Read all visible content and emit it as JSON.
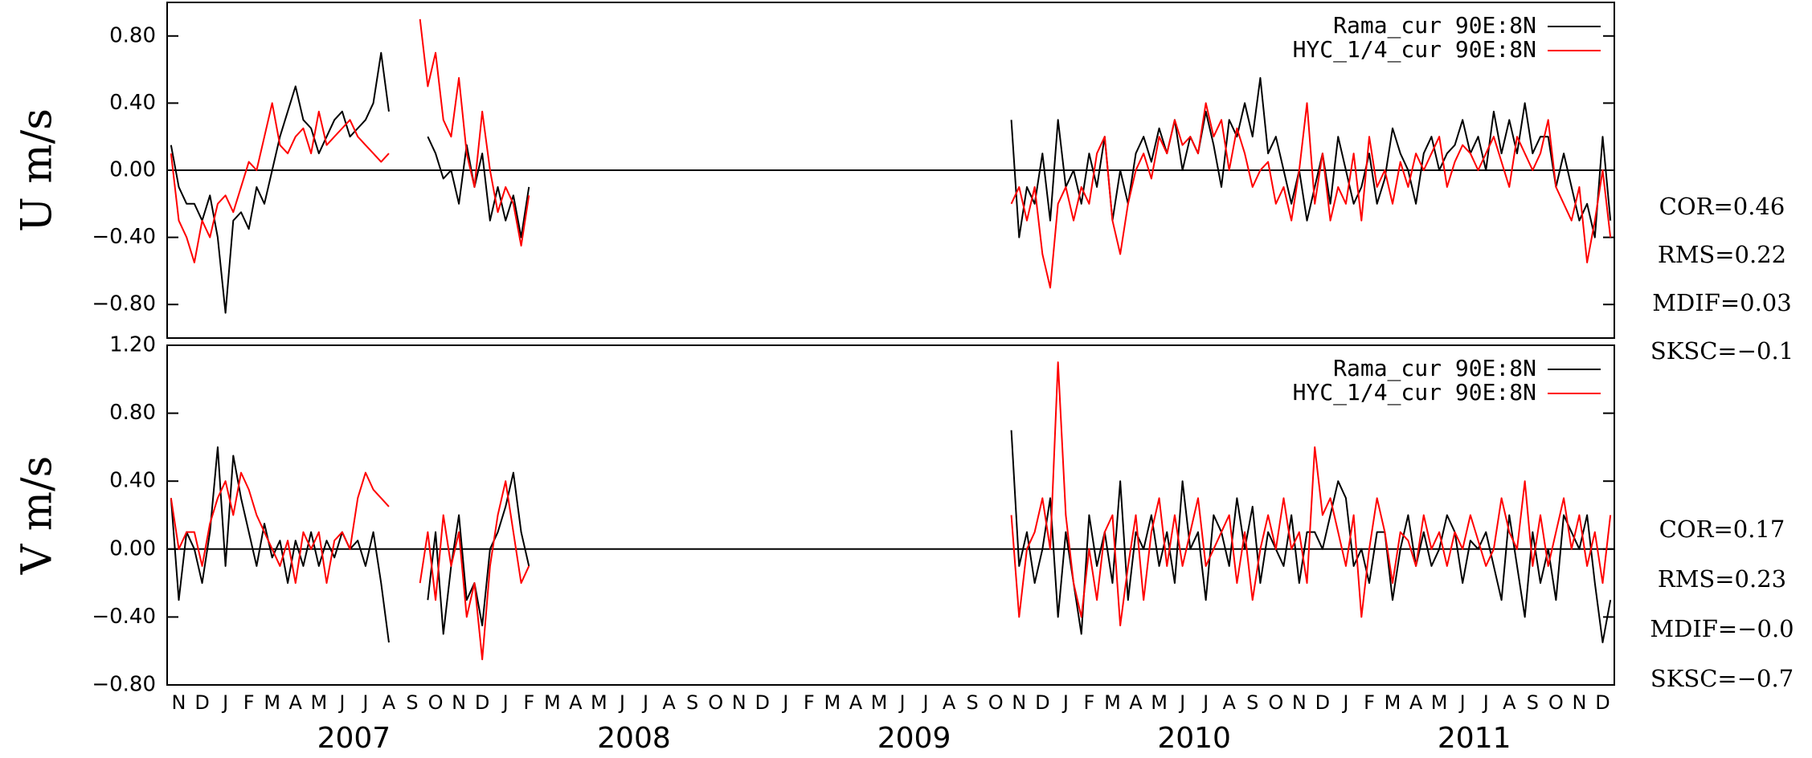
{
  "chart_data": [
    {
      "type": "line",
      "ylabel": "U m/s",
      "ylim": [
        -1.0,
        1.0
      ],
      "yticks": [
        {
          "value": -0.8,
          "label": "−0.80"
        },
        {
          "value": -0.4,
          "label": "−0.40"
        },
        {
          "value": 0,
          "label": "0.00"
        },
        {
          "value": 0.4,
          "label": "0.40"
        },
        {
          "value": 0.8,
          "label": "0.80"
        }
      ],
      "series": [
        {
          "name": "Rama_cur 90E:8N",
          "color": "#000000",
          "values": [
            0.15,
            -0.1,
            -0.2,
            -0.2,
            -0.3,
            -0.15,
            -0.4,
            -0.85,
            -0.3,
            -0.25,
            -0.35,
            -0.1,
            -0.2,
            0.0,
            0.2,
            0.35,
            0.5,
            0.3,
            0.25,
            0.1,
            0.2,
            0.3,
            0.35,
            0.2,
            0.25,
            0.3,
            0.4,
            0.7,
            0.35,
            null,
            null,
            null,
            null,
            0.2,
            0.1,
            -0.05,
            0.0,
            -0.2,
            0.15,
            -0.1,
            0.1,
            -0.3,
            -0.1,
            -0.3,
            -0.15,
            -0.4,
            -0.1,
            null,
            null,
            null,
            null,
            null,
            null,
            null,
            null,
            null,
            null,
            null,
            null,
            null,
            null,
            null,
            null,
            null,
            null,
            null,
            null,
            null,
            null,
            null,
            null,
            null,
            null,
            null,
            null,
            null,
            null,
            null,
            null,
            null,
            null,
            null,
            null,
            null,
            null,
            null,
            null,
            null,
            null,
            null,
            null,
            null,
            null,
            null,
            null,
            null,
            null,
            null,
            null,
            null,
            null,
            null,
            null,
            null,
            null,
            null,
            null,
            null,
            0.3,
            -0.4,
            -0.1,
            -0.2,
            0.1,
            -0.3,
            0.3,
            -0.1,
            0.0,
            -0.2,
            0.1,
            -0.1,
            0.2,
            -0.3,
            0.0,
            -0.2,
            0.1,
            0.2,
            0.05,
            0.25,
            0.1,
            0.3,
            0.0,
            0.2,
            0.1,
            0.35,
            0.15,
            -0.1,
            0.3,
            0.2,
            0.4,
            0.2,
            0.55,
            0.1,
            0.2,
            0.0,
            -0.2,
            0.0,
            -0.3,
            -0.1,
            0.1,
            -0.2,
            0.2,
            0.0,
            -0.2,
            -0.1,
            0.1,
            -0.2,
            -0.05,
            0.25,
            0.1,
            0.0,
            -0.2,
            0.1,
            0.2,
            0.0,
            0.1,
            0.15,
            0.3,
            0.1,
            0.2,
            0.0,
            0.35,
            0.1,
            0.3,
            0.1,
            0.4,
            0.1,
            0.2,
            0.2,
            -0.1,
            0.1,
            -0.1,
            -0.3,
            -0.2,
            -0.4,
            0.2,
            -0.3
          ]
        },
        {
          "name": "HYC_1/4_cur 90E:8N",
          "color": "#ff0000",
          "values": [
            0.1,
            -0.3,
            -0.4,
            -0.55,
            -0.3,
            -0.4,
            -0.2,
            -0.15,
            -0.25,
            -0.1,
            0.05,
            0.0,
            0.2,
            0.4,
            0.15,
            0.1,
            0.2,
            0.25,
            0.1,
            0.35,
            0.15,
            0.2,
            0.25,
            0.3,
            0.2,
            0.15,
            0.1,
            0.05,
            0.1,
            null,
            null,
            null,
            0.9,
            0.5,
            0.7,
            0.3,
            0.2,
            0.55,
            0.1,
            -0.1,
            0.35,
            0.0,
            -0.25,
            -0.1,
            -0.2,
            -0.45,
            -0.15,
            null,
            null,
            null,
            null,
            null,
            null,
            null,
            null,
            null,
            null,
            null,
            null,
            null,
            null,
            null,
            null,
            null,
            null,
            null,
            null,
            null,
            null,
            null,
            null,
            null,
            null,
            null,
            null,
            null,
            null,
            null,
            null,
            null,
            null,
            null,
            null,
            null,
            null,
            null,
            null,
            null,
            null,
            null,
            null,
            null,
            null,
            null,
            null,
            null,
            null,
            null,
            null,
            null,
            null,
            null,
            null,
            null,
            null,
            null,
            null,
            null,
            -0.2,
            -0.1,
            -0.3,
            -0.1,
            -0.5,
            -0.7,
            -0.2,
            -0.1,
            -0.3,
            -0.1,
            -0.2,
            0.1,
            0.2,
            -0.3,
            -0.5,
            -0.2,
            0.0,
            0.1,
            -0.05,
            0.2,
            0.1,
            0.3,
            0.15,
            0.2,
            0.1,
            0.4,
            0.2,
            0.3,
            0.0,
            0.25,
            0.1,
            -0.1,
            0.0,
            0.05,
            -0.2,
            -0.1,
            -0.3,
            0.0,
            0.4,
            -0.2,
            0.1,
            -0.3,
            -0.1,
            -0.2,
            0.1,
            -0.3,
            0.2,
            -0.1,
            0.0,
            -0.2,
            0.05,
            -0.1,
            0.1,
            0.0,
            0.1,
            0.2,
            -0.1,
            0.05,
            0.15,
            0.1,
            0.0,
            0.1,
            0.2,
            0.05,
            -0.1,
            0.2,
            0.1,
            0.0,
            0.1,
            0.3,
            -0.1,
            -0.2,
            -0.3,
            -0.1,
            -0.55,
            -0.3,
            0.0,
            -0.4
          ]
        }
      ],
      "annotations": [
        "COR=0.46",
        "RMS=0.22",
        "MDIF=0.03",
        "SKSC=−0.1"
      ]
    },
    {
      "type": "line",
      "ylabel": "V m/s",
      "ylim": [
        -0.8,
        1.2
      ],
      "yticks": [
        {
          "value": -0.8,
          "label": "−0.80"
        },
        {
          "value": -0.4,
          "label": "−0.40"
        },
        {
          "value": 0,
          "label": "0.00"
        },
        {
          "value": 0.4,
          "label": "0.40"
        },
        {
          "value": 0.8,
          "label": "0.80"
        },
        {
          "value": 1.2,
          "label": "1.20"
        }
      ],
      "categories": [
        null,
        "N",
        null,
        null,
        "D",
        null,
        null,
        "J",
        null,
        null,
        "F",
        null,
        null,
        "M",
        null,
        null,
        "A",
        null,
        null,
        "M",
        null,
        null,
        "J",
        null,
        null,
        "J",
        null,
        null,
        "A",
        null,
        null,
        "S",
        null,
        null,
        "O",
        null,
        null,
        "N",
        null,
        null,
        "D",
        null,
        null,
        "J",
        null,
        null,
        "F",
        null,
        null,
        "M",
        null,
        null,
        "A",
        null,
        null,
        "M",
        null,
        null,
        "J",
        null,
        null,
        "J",
        null,
        null,
        "A",
        null,
        null,
        "S",
        null,
        null,
        "O",
        null,
        null,
        "N",
        null,
        null,
        "D",
        null,
        null,
        "J",
        null,
        null,
        "F",
        null,
        null,
        "M",
        null,
        null,
        "A",
        null,
        null,
        "M",
        null,
        null,
        "J",
        null,
        null,
        "J",
        null,
        null,
        "A",
        null,
        null,
        "S",
        null,
        null,
        "O",
        null,
        null,
        "N",
        null,
        null,
        "D",
        null,
        null,
        "J",
        null,
        null,
        "F",
        null,
        null,
        "M",
        null,
        null,
        "A",
        null,
        null,
        "M",
        null,
        null,
        "J",
        null,
        null,
        "J",
        null,
        null,
        "A",
        null,
        null,
        "S",
        null,
        null,
        "O",
        null,
        null,
        "N",
        null,
        null,
        "D",
        null,
        null,
        "J",
        null,
        null,
        "F",
        null,
        null,
        "M",
        null,
        null,
        "A",
        null,
        null,
        "M",
        null,
        null,
        "J",
        null,
        null,
        "J",
        null,
        null,
        "A",
        null,
        null,
        "S",
        null,
        null,
        "O",
        null,
        null,
        "N",
        null,
        null,
        "D",
        null
      ],
      "x_group_labels": [
        "2007",
        "2008",
        "2009",
        "2010",
        "2011"
      ],
      "series": [
        {
          "name": "Rama_cur 90E:8N",
          "color": "#000000",
          "values": [
            0.3,
            -0.3,
            0.1,
            0.0,
            -0.2,
            0.1,
            0.6,
            -0.1,
            0.55,
            0.3,
            0.1,
            -0.1,
            0.15,
            -0.05,
            0.05,
            -0.2,
            0.05,
            -0.1,
            0.1,
            -0.1,
            0.05,
            -0.05,
            0.1,
            0.0,
            0.05,
            -0.1,
            0.1,
            -0.2,
            -0.55,
            null,
            null,
            null,
            null,
            -0.3,
            0.1,
            -0.5,
            -0.1,
            0.2,
            -0.3,
            -0.2,
            -0.45,
            0.0,
            0.1,
            0.25,
            0.45,
            0.1,
            -0.1,
            null,
            null,
            null,
            null,
            null,
            null,
            null,
            null,
            null,
            null,
            null,
            null,
            null,
            null,
            null,
            null,
            null,
            null,
            null,
            null,
            null,
            null,
            null,
            null,
            null,
            null,
            null,
            null,
            null,
            null,
            null,
            null,
            null,
            null,
            null,
            null,
            null,
            null,
            null,
            null,
            null,
            null,
            null,
            null,
            null,
            null,
            null,
            null,
            null,
            null,
            null,
            null,
            null,
            null,
            null,
            null,
            null,
            null,
            null,
            null,
            null,
            0.7,
            -0.1,
            0.1,
            -0.2,
            0.0,
            0.3,
            -0.4,
            0.1,
            -0.2,
            -0.5,
            0.2,
            -0.1,
            0.1,
            -0.2,
            0.4,
            -0.3,
            0.1,
            0.0,
            0.2,
            -0.1,
            0.1,
            -0.2,
            0.4,
            0.0,
            0.1,
            -0.3,
            0.2,
            0.1,
            -0.1,
            0.3,
            0.0,
            0.25,
            -0.2,
            0.1,
            0.0,
            -0.1,
            0.2,
            -0.2,
            0.1,
            0.1,
            0.0,
            0.2,
            0.4,
            0.3,
            -0.1,
            0.0,
            -0.2,
            0.1,
            0.1,
            -0.3,
            0.0,
            0.2,
            -0.1,
            0.1,
            -0.1,
            0.0,
            0.2,
            0.1,
            -0.2,
            0.05,
            0.0,
            0.1,
            -0.1,
            -0.3,
            0.2,
            -0.1,
            -0.4,
            0.1,
            -0.2,
            0.0,
            -0.3,
            0.2,
            0.1,
            0.0,
            0.2,
            -0.2,
            -0.55,
            -0.3
          ]
        },
        {
          "name": "HYC_1/4_cur 90E:8N",
          "color": "#ff0000",
          "values": [
            0.3,
            0.0,
            0.1,
            0.1,
            -0.1,
            0.15,
            0.3,
            0.4,
            0.2,
            0.45,
            0.35,
            0.2,
            0.1,
            0.0,
            -0.1,
            0.05,
            -0.2,
            0.1,
            0.0,
            0.1,
            -0.2,
            0.05,
            0.1,
            0.0,
            0.3,
            0.45,
            0.35,
            0.3,
            0.25,
            null,
            null,
            null,
            -0.2,
            0.1,
            -0.3,
            0.2,
            -0.1,
            0.1,
            -0.4,
            -0.2,
            -0.65,
            -0.1,
            0.2,
            0.4,
            0.1,
            -0.2,
            -0.1,
            null,
            null,
            null,
            null,
            null,
            null,
            null,
            null,
            null,
            null,
            null,
            null,
            null,
            null,
            null,
            null,
            null,
            null,
            null,
            null,
            null,
            null,
            null,
            null,
            null,
            null,
            null,
            null,
            null,
            null,
            null,
            null,
            null,
            null,
            null,
            null,
            null,
            null,
            null,
            null,
            null,
            null,
            null,
            null,
            null,
            null,
            null,
            null,
            null,
            null,
            null,
            null,
            null,
            null,
            null,
            null,
            null,
            null,
            null,
            null,
            null,
            0.2,
            -0.4,
            0.0,
            0.1,
            0.3,
            0.0,
            1.1,
            0.2,
            -0.2,
            -0.4,
            0.0,
            -0.3,
            0.1,
            0.2,
            -0.45,
            -0.1,
            0.2,
            -0.3,
            0.1,
            0.3,
            -0.1,
            0.2,
            -0.1,
            0.1,
            0.3,
            -0.1,
            0.0,
            0.1,
            0.2,
            -0.2,
            0.1,
            -0.3,
            0.0,
            0.2,
            0.0,
            0.3,
            0.0,
            0.1,
            -0.2,
            0.6,
            0.2,
            0.3,
            0.1,
            -0.1,
            0.2,
            -0.4,
            0.0,
            0.3,
            0.1,
            -0.2,
            0.1,
            0.05,
            -0.1,
            0.2,
            0.0,
            0.1,
            -0.1,
            0.1,
            0.0,
            0.2,
            0.05,
            -0.1,
            0.0,
            0.3,
            0.1,
            0.0,
            0.4,
            -0.1,
            0.2,
            -0.1,
            0.1,
            0.3,
            0.0,
            0.2,
            -0.1,
            0.1,
            -0.2,
            0.2
          ]
        }
      ],
      "annotations": [
        "COR=0.17",
        "RMS=0.23",
        "MDIF=−0.0",
        "SKSC=−0.7"
      ]
    }
  ]
}
